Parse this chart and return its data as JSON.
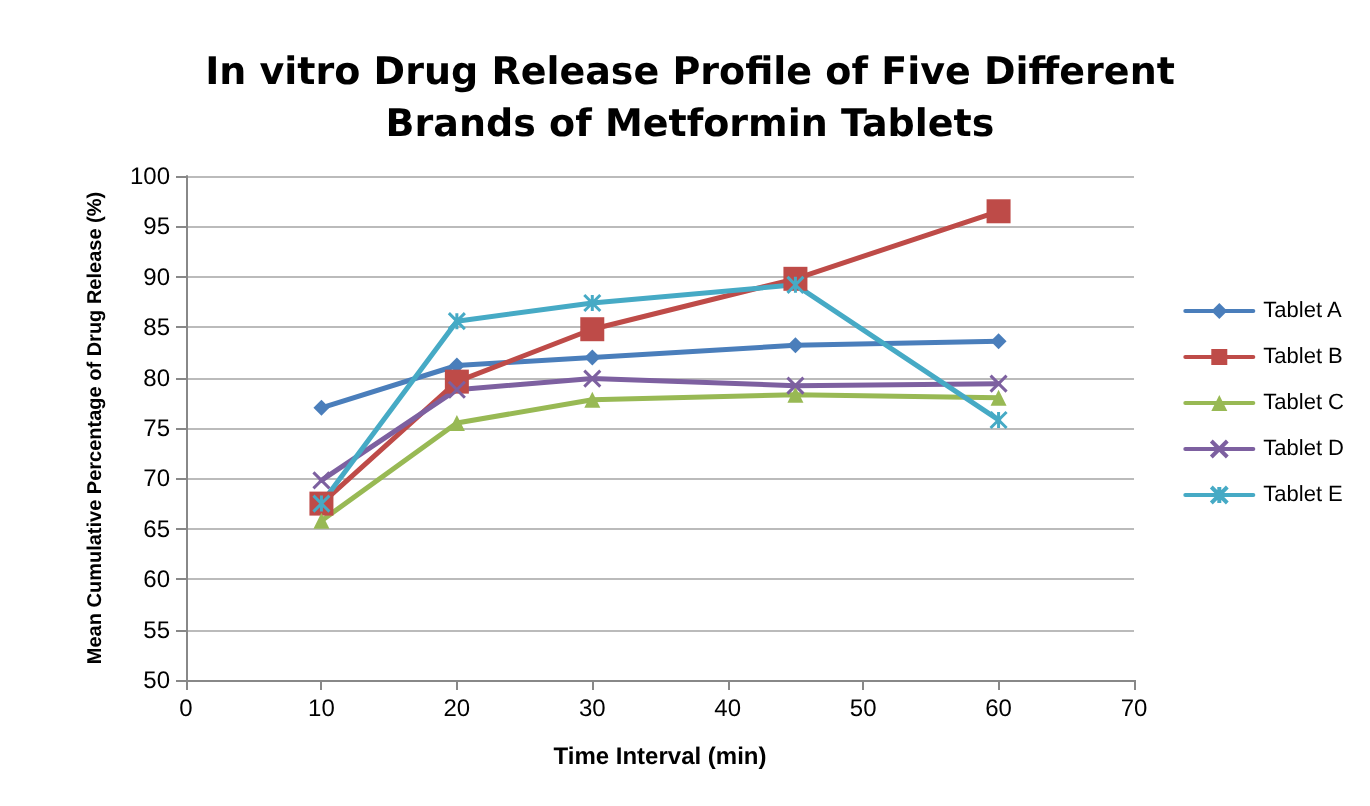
{
  "chart_data": {
    "type": "line",
    "title": "In vitro Drug Release Profile of Five Different\nBrands of Metformin Tablets",
    "xlabel": "Time Interval (min)",
    "ylabel": "Mean Cumulative Percentage of Drug Release (%)",
    "x": [
      10,
      20,
      30,
      45,
      60
    ],
    "series": [
      {
        "name": "Tablet A",
        "color": "#4a7ebb",
        "marker": "diamond",
        "values": [
          77,
          81.2,
          82,
          83.2,
          83.6
        ]
      },
      {
        "name": "Tablet B",
        "color": "#be4b48",
        "marker": "square",
        "values": [
          67.5,
          79.6,
          84.8,
          89.8,
          96.5
        ]
      },
      {
        "name": "Tablet C",
        "color": "#98b954",
        "marker": "triangle",
        "values": [
          65.8,
          75.5,
          77.8,
          78.3,
          78
        ]
      },
      {
        "name": "Tablet D",
        "color": "#7d60a0",
        "marker": "cross",
        "values": [
          69.8,
          78.8,
          79.9,
          79.2,
          79.4
        ]
      },
      {
        "name": "Tablet E",
        "color": "#46aac5",
        "marker": "cross",
        "values": [
          67.5,
          85.6,
          87.4,
          89.2,
          75.8
        ]
      }
    ],
    "xlim": [
      0,
      70
    ],
    "xticks": [
      0,
      10,
      20,
      30,
      40,
      50,
      60,
      70
    ],
    "ylim": [
      50,
      100
    ],
    "yticks": [
      50,
      55,
      60,
      65,
      70,
      75,
      80,
      85,
      90,
      95,
      100
    ],
    "grid": "y",
    "legend": "right",
    "line_style": "solid"
  }
}
